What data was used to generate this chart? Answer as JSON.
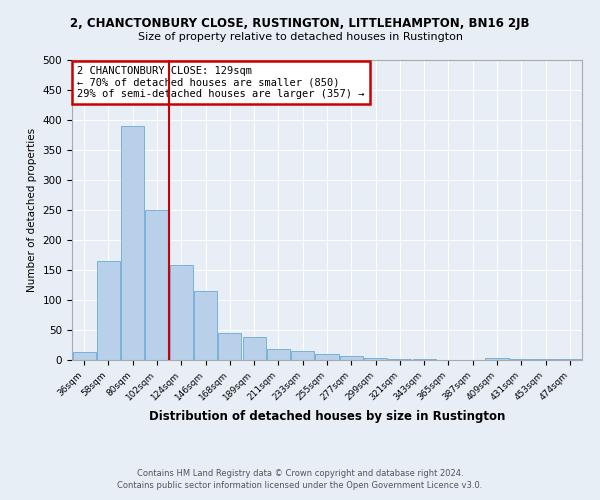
{
  "title": "2, CHANCTONBURY CLOSE, RUSTINGTON, LITTLEHAMPTON, BN16 2JB",
  "subtitle": "Size of property relative to detached houses in Rustington",
  "xlabel": "Distribution of detached houses by size in Rustington",
  "ylabel": "Number of detached properties",
  "bin_labels": [
    "36sqm",
    "58sqm",
    "80sqm",
    "102sqm",
    "124sqm",
    "146sqm",
    "168sqm",
    "189sqm",
    "211sqm",
    "233sqm",
    "255sqm",
    "277sqm",
    "299sqm",
    "321sqm",
    "343sqm",
    "365sqm",
    "387sqm",
    "409sqm",
    "431sqm",
    "453sqm",
    "474sqm"
  ],
  "bar_values": [
    13,
    165,
    390,
    250,
    158,
    115,
    45,
    39,
    19,
    15,
    10,
    7,
    3,
    2,
    1,
    0,
    0,
    3,
    2,
    1,
    1
  ],
  "bar_color": "#b8d0ea",
  "bar_edge_color": "#6aaad4",
  "vline_index": 4,
  "vline_color": "#cc0000",
  "annotation_box_text": "2 CHANCTONBURY CLOSE: 129sqm\n← 70% of detached houses are smaller (850)\n29% of semi-detached houses are larger (357) →",
  "annotation_box_facecolor": "white",
  "annotation_box_edgecolor": "#cc0000",
  "ylim": [
    0,
    500
  ],
  "yticks": [
    0,
    50,
    100,
    150,
    200,
    250,
    300,
    350,
    400,
    450,
    500
  ],
  "footer_line1": "Contains HM Land Registry data © Crown copyright and database right 2024.",
  "footer_line2": "Contains public sector information licensed under the Open Government Licence v3.0.",
  "bg_color": "#e8eef5",
  "grid_color": "white"
}
